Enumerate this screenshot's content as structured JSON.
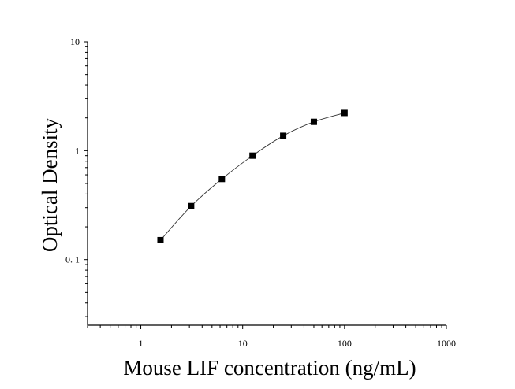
{
  "chart_data": {
    "type": "scatter",
    "title": "",
    "xlabel": "Mouse LIF concentration (ng/mL)",
    "ylabel": "Optical Density",
    "x_scale": "log",
    "y_scale": "log",
    "xlim": [
      0.3,
      1000
    ],
    "ylim": [
      0.025,
      10
    ],
    "x_ticks": [
      1,
      10,
      100,
      1000
    ],
    "x_tick_labels": [
      "1",
      "10",
      "100",
      "1000"
    ],
    "y_ticks": [
      0.1,
      1,
      10
    ],
    "y_tick_labels": [
      "0. 1",
      "1",
      "10"
    ],
    "grid": false,
    "legend": "none",
    "series": [
      {
        "x": [
          1.56,
          3.12,
          6.25,
          12.5,
          25,
          50,
          100
        ],
        "y": [
          0.151,
          0.31,
          0.55,
          0.9,
          1.37,
          1.84,
          2.22
        ],
        "marker": "square",
        "fit_line": true,
        "color": "#000000"
      }
    ]
  }
}
